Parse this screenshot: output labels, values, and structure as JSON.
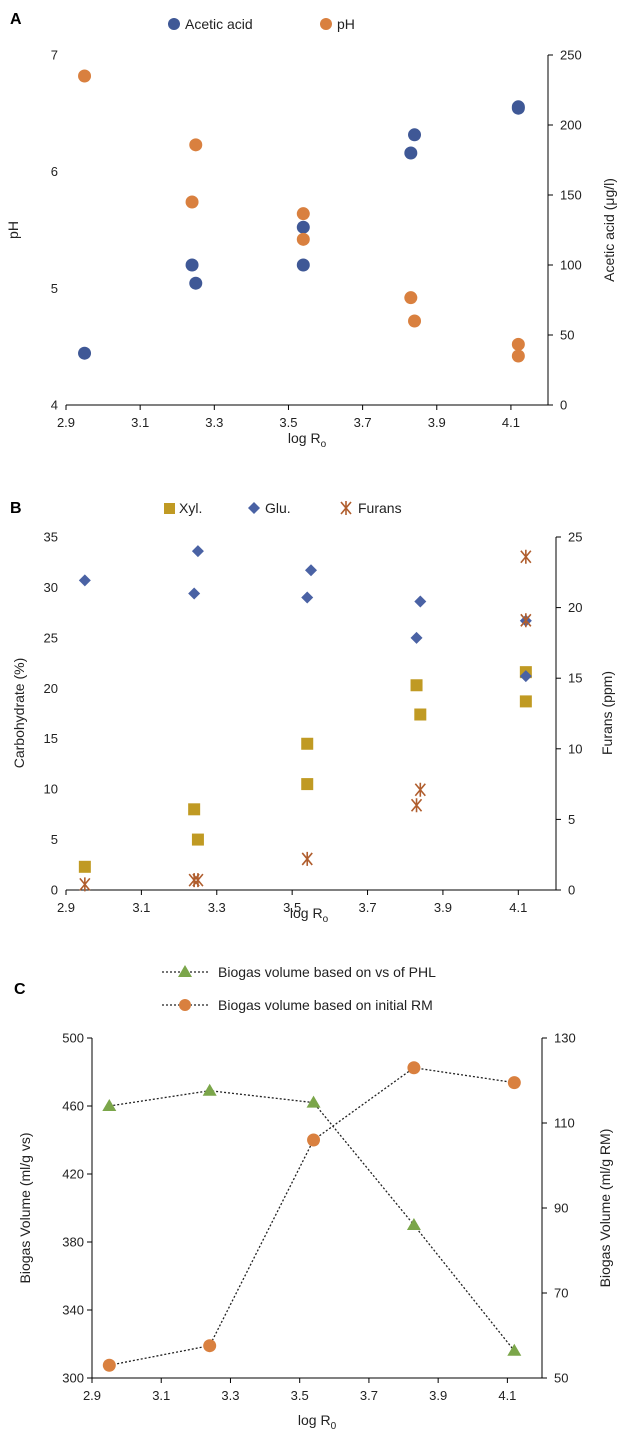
{
  "colors": {
    "acetic": "#3F5896",
    "ph": "#D9803F",
    "xyl": "#C09A23",
    "glu": "#4A62A4",
    "furans": "#B05E2E",
    "phl": "#7BA64A",
    "rm": "#D9803F",
    "line": "#222222"
  },
  "chart_data": [
    {
      "type": "scatter",
      "panel_label": "A",
      "xlabel": "log R",
      "xlabel_sub": "o",
      "ylabel": "pH",
      "y2label": "Acetic acid (μg/l)",
      "xlim": [
        2.9,
        4.2
      ],
      "ylim": [
        4,
        7
      ],
      "y2lim": [
        0,
        250
      ],
      "x_ticks": [
        "2.9",
        "3.1",
        "3.3",
        "3.5",
        "3.7",
        "3.9",
        "4.1"
      ],
      "y_ticks": [
        "4",
        "5",
        "6",
        "7"
      ],
      "y2_ticks": [
        "0",
        "50",
        "100",
        "150",
        "200",
        "250"
      ],
      "legend": "top",
      "series": [
        {
          "name": "Acetic acid",
          "axis": "right",
          "marker": "circle",
          "color": "acetic",
          "x": [
            2.95,
            3.24,
            3.25,
            3.54,
            3.54,
            3.83,
            3.84,
            4.12,
            4.12
          ],
          "y": [
            37,
            100,
            87,
            127,
            100,
            180,
            193,
            212,
            213
          ]
        },
        {
          "name": "pH",
          "axis": "left",
          "marker": "circle",
          "color": "ph",
          "x": [
            2.95,
            3.24,
            3.25,
            3.54,
            3.54,
            3.83,
            3.84,
            4.12,
            4.12
          ],
          "y": [
            6.82,
            5.74,
            6.23,
            5.64,
            5.42,
            4.92,
            4.72,
            4.52,
            4.42
          ]
        }
      ]
    },
    {
      "type": "scatter",
      "panel_label": "B",
      "xlabel": "log R",
      "xlabel_sub": "o",
      "ylabel": "Carbohydrate (%)",
      "y2label": "Furans (ppm)",
      "xlim": [
        2.9,
        4.2
      ],
      "ylim": [
        0,
        35
      ],
      "y2lim": [
        0,
        25
      ],
      "x_ticks": [
        "2.9",
        "3.1",
        "3.3",
        "3.5",
        "3.7",
        "3.9",
        "4.1"
      ],
      "y_ticks": [
        "0",
        "5",
        "10",
        "15",
        "20",
        "25",
        "30",
        "35"
      ],
      "y2_ticks": [
        "0",
        "5",
        "10",
        "15",
        "20",
        "25"
      ],
      "legend": "top",
      "series": [
        {
          "name": "Xyl.",
          "axis": "left",
          "marker": "square",
          "color": "xyl",
          "x": [
            2.95,
            3.24,
            3.25,
            3.54,
            3.54,
            3.83,
            3.84,
            4.12,
            4.12
          ],
          "y": [
            2.3,
            8.0,
            5.0,
            14.5,
            10.5,
            20.3,
            17.4,
            21.6,
            18.7
          ]
        },
        {
          "name": "Glu.",
          "axis": "left",
          "marker": "diamond",
          "color": "glu",
          "x": [
            2.95,
            3.24,
            3.25,
            3.54,
            3.55,
            3.83,
            3.84,
            4.12,
            4.12
          ],
          "y": [
            30.7,
            29.4,
            33.6,
            29.0,
            31.7,
            25.0,
            28.6,
            21.2,
            26.7
          ]
        },
        {
          "name": "Furans",
          "axis": "right",
          "marker": "star",
          "color": "furans",
          "x": [
            2.95,
            3.24,
            3.25,
            3.54,
            3.83,
            3.84,
            4.12,
            4.12
          ],
          "y": [
            0.4,
            0.7,
            0.7,
            2.2,
            6.0,
            7.1,
            23.6,
            19.1
          ]
        }
      ]
    },
    {
      "type": "line",
      "panel_label": "C",
      "xlabel": "log R",
      "xlabel_sub": "0",
      "ylabel": "Biogas Volume (ml/g vs)",
      "y2label": "Biogas Volume (ml/g RM)",
      "xlim": [
        2.9,
        4.2
      ],
      "ylim": [
        300,
        500
      ],
      "y2lim": [
        50,
        130
      ],
      "x_ticks": [
        "2.9",
        "3.1",
        "3.3",
        "3.5",
        "3.7",
        "3.9",
        "4.1"
      ],
      "y_ticks": [
        "300",
        "340",
        "380",
        "420",
        "460",
        "500"
      ],
      "y2_ticks": [
        "50",
        "70",
        "90",
        "110",
        "130"
      ],
      "legend": "top",
      "series": [
        {
          "name": "Biogas volume based on vs of PHL",
          "axis": "left",
          "marker": "triangle",
          "color": "phl",
          "x": [
            2.95,
            3.24,
            3.54,
            3.83,
            4.12
          ],
          "y": [
            460,
            469,
            462,
            390,
            316
          ]
        },
        {
          "name": "Biogas volume based on initial RM",
          "axis": "right",
          "marker": "circle",
          "color": "rm",
          "x": [
            2.95,
            3.24,
            3.54,
            3.83,
            4.12
          ],
          "y": [
            53,
            57.6,
            106,
            123,
            119.5
          ]
        }
      ]
    }
  ]
}
